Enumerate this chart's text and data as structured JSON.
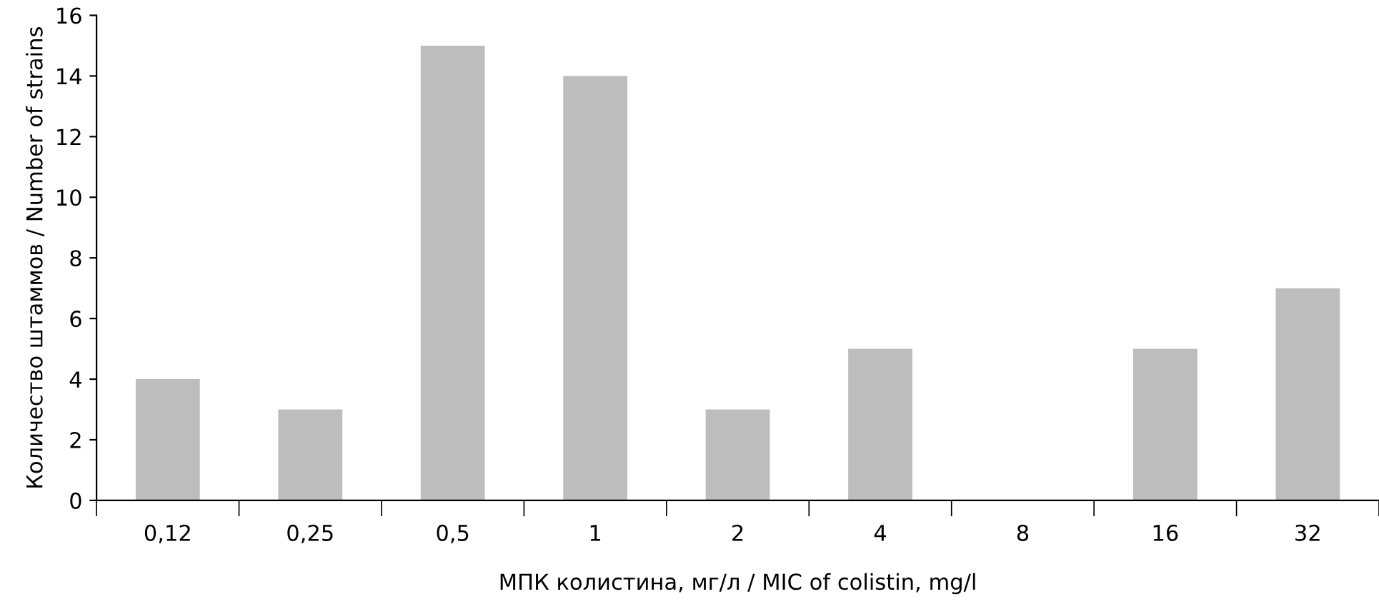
{
  "chart_data": {
    "type": "bar",
    "xlabel": "МПК колистина, мг/л / MIC of colistin, mg/l",
    "ylabel": "Количество штаммов / Number of strains",
    "categories": [
      "0,12",
      "0,25",
      "0,5",
      "1",
      "2",
      "4",
      "8",
      "16",
      "32"
    ],
    "values": [
      4,
      3,
      15,
      14,
      3,
      5,
      0,
      5,
      7
    ],
    "color": "#bdbdbd",
    "ylim": [
      0,
      16
    ],
    "yticks": [
      0,
      2,
      4,
      6,
      8,
      10,
      12,
      14,
      16
    ],
    "grid": false,
    "legend": false
  }
}
